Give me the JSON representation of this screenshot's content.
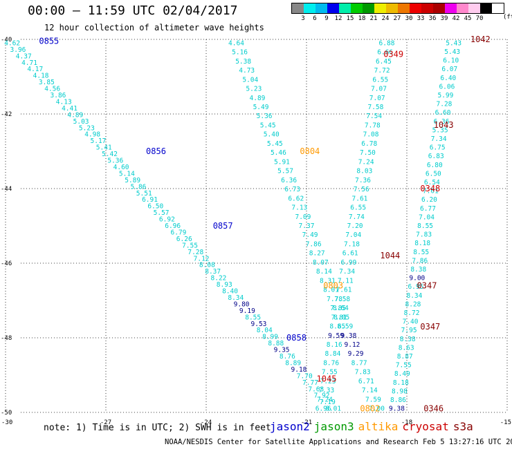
{
  "header": {
    "title": "00:00 – 11:59 UTC 02/04/2017",
    "subtitle": "12 hour collection of altimeter wave heights"
  },
  "legend": {
    "colors": [
      "#888888",
      "#00eeee",
      "#00bbee",
      "#0000ee",
      "#00eeaa",
      "#00cc00",
      "#009900",
      "#eeee00",
      "#eebb00",
      "#ee7700",
      "#ee0000",
      "#cc0000",
      "#aa0000",
      "#ee00ee",
      "#ff88cc",
      "#ffccee",
      "#000000"
    ],
    "labels": [
      "3",
      "6",
      "9",
      "12",
      "15",
      "18",
      "21",
      "24",
      "27",
      "30",
      "33",
      "36",
      "39",
      "42",
      "45",
      "70"
    ],
    "unit": "(ft)"
  },
  "axes": {
    "x_ticks": [
      "-30",
      "-27",
      "-24",
      "-21",
      "-18",
      "-15"
    ],
    "y_ticks": [
      "-40",
      "-42",
      "-44",
      "-46",
      "-48",
      "-50"
    ],
    "xlim": [
      -30,
      -15
    ],
    "ylim": [
      -50,
      -40
    ]
  },
  "colors": {
    "swh_point": "#00cccc",
    "swh_point_high": "#000088",
    "jason2": "#0000cc",
    "jason3": "#009900",
    "altika": "#ff9900",
    "cryosat": "#cc0000",
    "s3a": "#880000"
  },
  "tracks": [
    {
      "name": "track-0855-0858",
      "tagColor": "#0000cc",
      "start": [
        -29.8,
        -40.1
      ],
      "end": [
        -20.2,
        -49.9
      ],
      "values": [
        "4.62",
        "3.96",
        "4.37",
        "4.71",
        "4.17",
        "4.18",
        "3.85",
        "4.56",
        "3.86",
        "4.13",
        "4.41",
        "4.89",
        "5.03",
        "5.23",
        "4.98",
        "5.17",
        "5.41",
        "5.42",
        "5.36",
        "4.60",
        "5.14",
        "5.89",
        "5.86",
        "5.51",
        "6.91",
        "6.50",
        "5.57",
        "6.92",
        "6.96",
        "6.79",
        "6.26",
        "7.55",
        "7.28",
        "7.12",
        "8.08",
        "8.37",
        "8.22",
        "8.93",
        "8.40",
        "8.34",
        "9.80",
        "9.19",
        "8.55",
        "9.53",
        "8.04",
        "8.99",
        "8.88",
        "9.35",
        "8.76",
        "8.89",
        "9.18",
        "7.70",
        "7.77",
        "7.63",
        "7.92",
        "7.19",
        "8.01"
      ],
      "tags": [
        {
          "text": "0855",
          "at": [
            -28.7,
            -40.05
          ]
        },
        {
          "text": "0856",
          "at": [
            -25.5,
            -43.0
          ]
        },
        {
          "text": "0857",
          "at": [
            -23.5,
            -45.0
          ]
        },
        {
          "text": "0858",
          "at": [
            -21.3,
            -48.0
          ]
        }
      ]
    },
    {
      "name": "track-0804-0802",
      "tagColor": "#ff9900",
      "start": [
        -23.1,
        -40.1
      ],
      "end": [
        -18.9,
        -49.9
      ],
      "values": [
        "4.64",
        "5.16",
        "5.38",
        "4.73",
        "5.04",
        "5.23",
        "4.89",
        "5.49",
        "5.36",
        "5.45",
        "5.40",
        "5.45",
        "5.46",
        "5.91",
        "5.57",
        "6.36",
        "6.73",
        "6.62",
        "7.13",
        "7.09",
        "7.37",
        "7.49",
        "7.86",
        "8.27",
        "8.07",
        "8.14",
        "8.31",
        "8.01",
        "7.78",
        "7.85",
        "8.05",
        "8.59",
        "9.38",
        "9.12",
        "9.29",
        "8.77",
        "7.83",
        "6.71",
        "7.14",
        "7.59",
        "7.00"
      ],
      "tags": [
        {
          "text": "0804",
          "at": [
            -20.9,
            -43.0
          ]
        },
        {
          "text": "0803",
          "at": [
            -20.2,
            -46.6
          ]
        },
        {
          "text": "0802",
          "at": [
            -19.1,
            -49.9
          ]
        }
      ]
    },
    {
      "name": "track-0349-1045",
      "tagColor": "#cc0000",
      "start": [
        -18.6,
        -40.1
      ],
      "end": [
        -20.5,
        -49.9
      ],
      "values": [
        "6.88",
        "6.66",
        "6.45",
        "7.72",
        "6.55",
        "7.07",
        "7.07",
        "7.58",
        "7.54",
        "7.78",
        "7.08",
        "6.78",
        "7.50",
        "7.24",
        "8.03",
        "7.36",
        "7.56",
        "7.61",
        "6.55",
        "7.74",
        "7.20",
        "7.04",
        "7.18",
        "6.61",
        "6.99",
        "7.34",
        "7.11",
        "7.61",
        "7.58",
        "8.64",
        "7.81",
        "8.65",
        "9.59",
        "8.16",
        "8.84",
        "8.76",
        "7.55",
        "7.23",
        "7.33",
        "7.24",
        "6.96"
      ],
      "tags": [
        {
          "text": "0349",
          "at": [
            -18.4,
            -40.4
          ]
        },
        {
          "text": "0348",
          "at": [
            -17.3,
            -44.0
          ]
        },
        {
          "text": "1045",
          "at": [
            -20.4,
            -49.1
          ]
        }
      ]
    },
    {
      "name": "track-1042-0346",
      "tagColor": "#880000",
      "start": [
        -16.6,
        -40.1
      ],
      "end": [
        -18.3,
        -49.9
      ],
      "values": [
        "5.43",
        "5.43",
        "6.10",
        "6.07",
        "6.40",
        "6.06",
        "5.99",
        "7.28",
        "6.60",
        "6.36",
        "5.35",
        "7.34",
        "6.75",
        "6.83",
        "6.80",
        "6.50",
        "6.54",
        "7.01",
        "6.20",
        "6.77",
        "7.04",
        "8.55",
        "7.83",
        "8.18",
        "8.55",
        "7.86",
        "8.38",
        "9.00",
        "6.95",
        "8.34",
        "8.28",
        "8.72",
        "7.40",
        "7.95",
        "8.38",
        "8.63",
        "8.87",
        "7.55",
        "8.49",
        "8.18",
        "8.98",
        "8.86",
        "9.38"
      ],
      "tags": [
        {
          "text": "1042",
          "at": [
            -15.8,
            -40.0
          ]
        },
        {
          "text": "1043",
          "at": [
            -16.9,
            -42.3
          ]
        },
        {
          "text": "1044",
          "at": [
            -18.5,
            -45.8
          ]
        },
        {
          "text": "0347",
          "at": [
            -17.4,
            -46.6
          ]
        },
        {
          "text": "0347",
          "at": [
            -17.3,
            -47.7
          ]
        },
        {
          "text": "0346",
          "at": [
            -17.2,
            -49.9
          ]
        }
      ]
    }
  ],
  "note": "note: 1) Time is in UTC; 2) SWH is in feet",
  "satellites": [
    {
      "name": "jason2",
      "color": "#0000cc"
    },
    {
      "name": "jason3",
      "color": "#009900"
    },
    {
      "name": "altika",
      "color": "#ff9900"
    },
    {
      "name": "cryosat",
      "color": "#cc0000"
    },
    {
      "name": "s3a",
      "color": "#880000"
    }
  ],
  "footer": "NOAA/NESDIS Center for Satellite Applications and Research    Feb  5 13:27:16 UTC 2017"
}
